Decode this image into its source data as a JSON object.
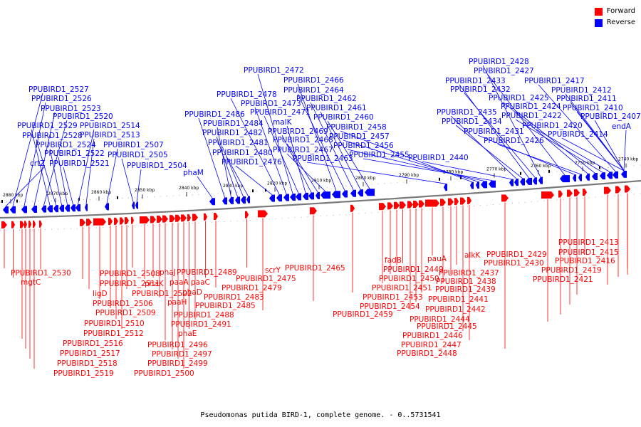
{
  "legend": {
    "forward_label": "Forward",
    "reverse_label": "Reverse",
    "forward_color": "#ff0000",
    "reverse_color": "#0000ff"
  },
  "caption": "Pseudomonas putida BIRD-1, complete genome. - 0..5731541",
  "ticks": [
    "2880 kbp",
    "2870 kbp",
    "2860 kbp",
    "2850 kbp",
    "2840 kbp",
    "2830 kbp",
    "2820 kbp",
    "2810 kbp",
    "2800 kbp",
    "2790 kbp",
    "2780 kbp",
    "2770 kbp",
    "2760 kbp",
    "2750 kbp",
    "2740 kbp"
  ],
  "reverse_genes": [
    "crtZ",
    "PPUBIRD1_2527",
    "PPUBIRD1_2526",
    "PPUBIRD1_2523",
    "PPUBIRD1_2520",
    "PPUBIRD1_2529",
    "PPUBIRD1_2528",
    "PPUBIRD1_2524",
    "PPUBIRD1_2522",
    "PPUBIRD1_2521",
    "PPUBIRD1_2514",
    "PPUBIRD1_2513",
    "PPUBIRD1_2507",
    "PPUBIRD1_2505",
    "PPUBIRD1_2504",
    "phaM",
    "PPUBIRD1_2486",
    "PPUBIRD1_2484",
    "PPUBIRD1_2482",
    "PPUBIRD1_2481",
    "PPUBIRD1_2480",
    "PPUBIRD1_2476",
    "PPUBIRD1_2478",
    "PPUBIRD1_2473",
    "PPUBIRD1_2472",
    "PPUBIRD1_2471",
    "malK",
    "PPUBIRD1_2469",
    "PPUBIRD1_2468",
    "PPUBIRD1_2467",
    "PPUBIRD1_2466",
    "PPUBIRD1_2464",
    "PPUBIRD1_2462",
    "PPUBIRD1_2461",
    "PPUBIRD1_2460",
    "PPUBIRD1_2463",
    "PPUBIRD1_2458",
    "PPUBIRD1_2457",
    "PPUBIRD1_2456",
    "PPUBIRD1_2455",
    "PPUBIRD1_2440",
    "PPUBIRD1_2435",
    "PPUBIRD1_2434",
    "PPUBIRD1_2433",
    "PPUBIRD1_2432",
    "PPUBIRD1_2428",
    "PPUBIRD1_2427",
    "PPUBIRD1_2431",
    "PPUBIRD1_2426",
    "PPUBIRD1_2425",
    "PPUBIRD1_2424",
    "PPUBIRD1_2422",
    "PPUBIRD1_2420",
    "PPUBIRD1_2417",
    "PPUBIRD1_2412",
    "PPUBIRD1_2411",
    "PPUBIRD1_2410",
    "PPUBIRD1_2414",
    "PPUBIRD1_2407",
    "endA"
  ],
  "forward_genes": [
    "PPUBIRD1_2530",
    "mgtC",
    "PPUBIRD1_2516",
    "PPUBIRD1_2517",
    "PPUBIRD1_2518",
    "PPUBIRD1_2519",
    "PPUBIRD1_2508",
    "PPUBIRD1_2511",
    "ligD",
    "PPUBIRD1_2506",
    "PPUBIRD1_2509",
    "PPUBIRD1_2510",
    "PPUBIRD1_2512",
    "PPUBIRD1_2502",
    "phaJ",
    "phaK",
    "paaA",
    "paaH",
    "PPUBIRD1_2496",
    "PPUBIRD1_2497",
    "PPUBIRD1_2499",
    "PPUBIRD1_2500",
    "phaE",
    "PPUBIRD1_2491",
    "paaC",
    "phaD",
    "PPUBIRD1_2489",
    "PPUBIRD1_2488",
    "PPUBIRD1_2485",
    "PPUBIRD1_2483",
    "PPUBIRD1_2479",
    "PPUBIRD1_2475",
    "scrY",
    "PPUBIRD1_2465",
    "PPUBIRD1_2459",
    "PPUBIRD1_2454",
    "PPUBIRD1_2453",
    "fadB",
    "PPUBIRD1_2451",
    "PPUBIRD1_2450",
    "PPUBIRD1_2449",
    "PPUBIRD1_2446",
    "PPUBIRD1_2447",
    "PPUBIRD1_2448",
    "PPUBIRD1_2445",
    "PPUBIRD1_2444",
    "PPUBIRD1_2442",
    "PPUBIRD1_2441",
    "pauA",
    "PPUBIRD1_2439",
    "PPUBIRD1_2438",
    "PPUBIRD1_2437",
    "alkK",
    "PPUBIRD1_2429",
    "PPUBIRD1_2430",
    "PPUBIRD1_2413",
    "PPUBIRD1_2415",
    "PPUBIRD1_2416",
    "PPUBIRD1_2419",
    "PPUBIRD1_2421"
  ]
}
